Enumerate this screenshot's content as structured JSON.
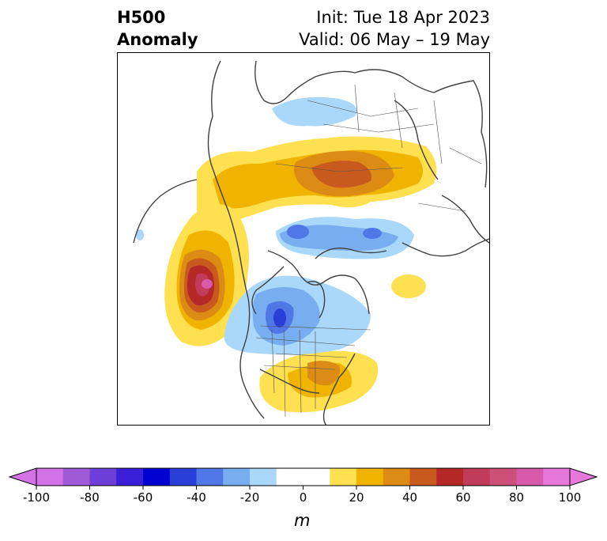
{
  "title": {
    "left_line1": "H500",
    "left_line2": "Anomaly",
    "right_line1": "Init: Tue 18 Apr 2023",
    "right_line2": "Valid: 06 May – 19 May"
  },
  "colorbar": {
    "unit": "m",
    "levels": [
      -100,
      -90,
      -80,
      -70,
      -60,
      -50,
      -40,
      -30,
      -20,
      -10,
      10,
      20,
      30,
      40,
      50,
      60,
      70,
      80,
      90,
      100
    ],
    "ticks": [
      "-100",
      "-80",
      "-60",
      "-40",
      "-20",
      "0",
      "20",
      "40",
      "60",
      "80",
      "100"
    ],
    "colors": [
      "#d272e6",
      "#a05ad8",
      "#6e3fd8",
      "#3b1fd8",
      "#0000d0",
      "#2a3fd8",
      "#4f78e6",
      "#78aef0",
      "#aad8fa",
      "#ffffff",
      "#ffe050",
      "#f0b400",
      "#dc8c14",
      "#c85a1e",
      "#b42828",
      "#c03c5a",
      "#cd5078",
      "#d85aaa",
      "#e678dc"
    ],
    "under_color": "#d272e6",
    "over_color": "#e678dc"
  }
}
